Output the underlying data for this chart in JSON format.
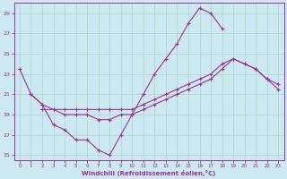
{
  "xlabel": "Windchill (Refroidissement éolien,°C)",
  "bg_color": "#cce8f0",
  "grid_color": "#aad4cc",
  "line_color": "#993399",
  "xmin": -0.5,
  "xmax": 23.5,
  "ymin": 14.5,
  "ymax": 30.0,
  "yticks": [
    15,
    17,
    19,
    21,
    23,
    25,
    27,
    29
  ],
  "xticks": [
    0,
    1,
    2,
    3,
    4,
    5,
    6,
    7,
    8,
    9,
    10,
    11,
    12,
    13,
    14,
    15,
    16,
    17,
    18,
    19,
    20,
    21,
    22,
    23
  ],
  "curve1_x": [
    0,
    1,
    2,
    3,
    4,
    5,
    6,
    7,
    8,
    9,
    10,
    11,
    12,
    13,
    14,
    15,
    16,
    17,
    18
  ],
  "curve1_y": [
    23.5,
    21.0,
    20.0,
    18.0,
    17.5,
    16.5,
    16.5,
    15.5,
    15.0,
    17.0,
    19.0,
    21.0,
    23.0,
    24.5,
    26.0,
    28.0,
    29.5,
    29.0,
    27.5
  ],
  "curve2_x": [
    1,
    2,
    3,
    4,
    5,
    6,
    7,
    8,
    9,
    10,
    11,
    12,
    13,
    14,
    15,
    16,
    17,
    18,
    19,
    20,
    21,
    22,
    23
  ],
  "curve2_y": [
    21.0,
    20.0,
    19.5,
    19.5,
    19.5,
    19.5,
    19.5,
    19.5,
    19.5,
    19.5,
    20.0,
    20.5,
    21.0,
    21.5,
    22.0,
    22.5,
    23.0,
    24.0,
    24.5,
    24.0,
    23.5,
    22.5,
    22.0
  ],
  "curve3_x": [
    2,
    3,
    4,
    5,
    6,
    7,
    8,
    9,
    10,
    11,
    12,
    13,
    14,
    15,
    16,
    17,
    18,
    19,
    20,
    21,
    22,
    23
  ],
  "curve3_y": [
    19.5,
    19.5,
    19.0,
    19.0,
    19.0,
    18.5,
    18.5,
    19.0,
    19.0,
    19.5,
    20.0,
    20.5,
    21.0,
    21.5,
    22.0,
    22.5,
    23.5,
    24.5,
    24.0,
    23.5,
    22.5,
    21.5
  ]
}
